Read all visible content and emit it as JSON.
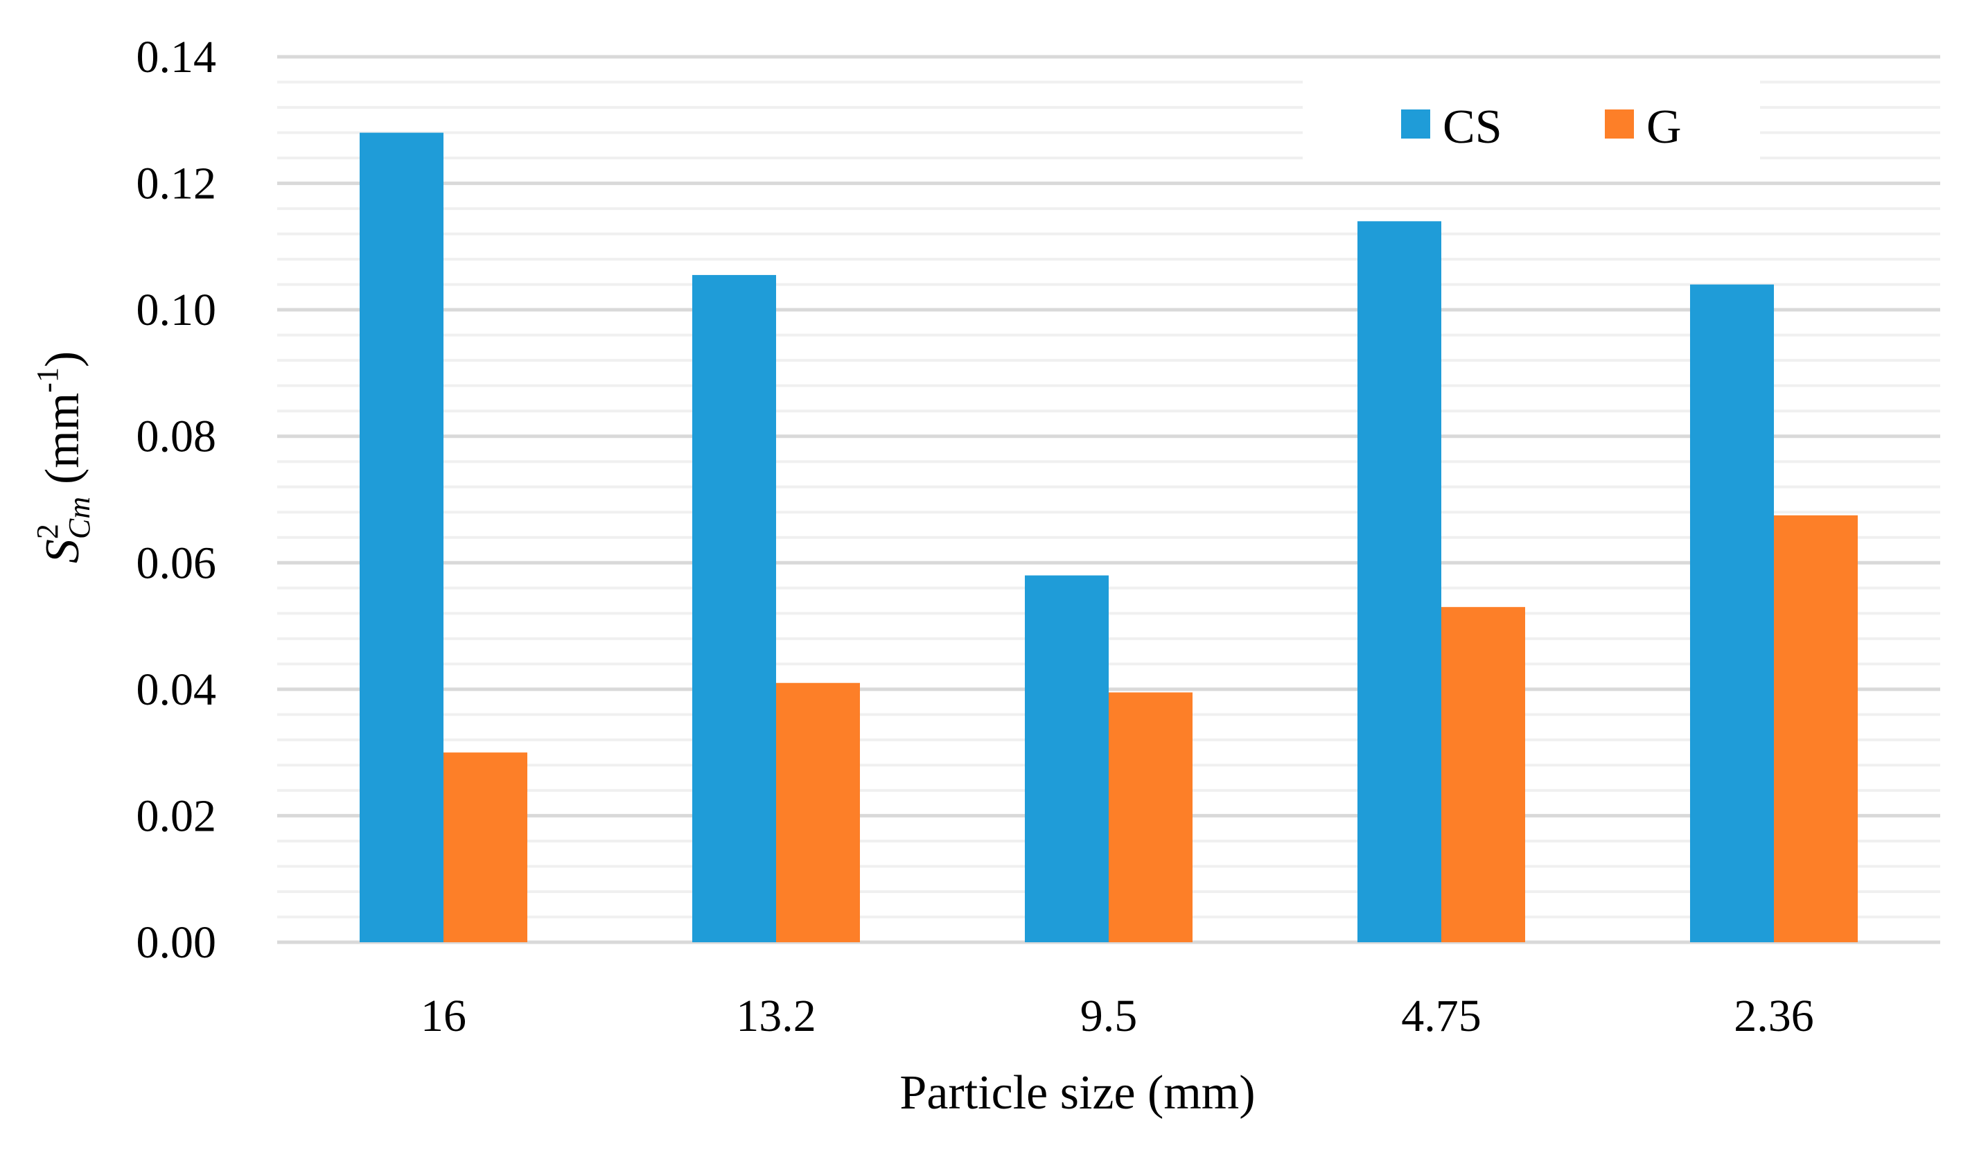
{
  "chart_data": {
    "type": "bar",
    "title": "",
    "categories": [
      "16",
      "13.2",
      "9.5",
      "4.75",
      "2.36"
    ],
    "series": [
      {
        "name": "CS",
        "color": "#1f9cd8",
        "values": [
          0.128,
          0.1055,
          0.058,
          0.114,
          0.104
        ]
      },
      {
        "name": "G",
        "color": "#fd7f28",
        "values": [
          0.03,
          0.041,
          0.0395,
          0.053,
          0.0675
        ]
      }
    ],
    "xlabel": "Particle size (mm)",
    "ylabel": {
      "base": "S",
      "sup": "2",
      "sub": "Cm",
      "units": "(mm",
      "units_sup": "-1",
      "units_close": ")"
    },
    "ylim": [
      0,
      0.14
    ],
    "yticks": [
      "0.00",
      "0.02",
      "0.04",
      "0.06",
      "0.08",
      "0.10",
      "0.12",
      "0.14"
    ],
    "grid": true,
    "legend_position": "top-right",
    "colors": {
      "major_grid": "#d9d9d9",
      "minor_grid": "#f0f0f0"
    }
  }
}
